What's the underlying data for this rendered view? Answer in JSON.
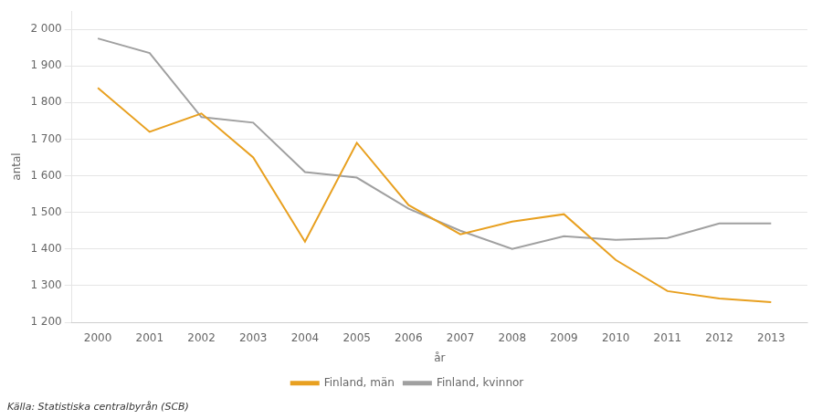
{
  "chart_data": {
    "type": "line",
    "xlabel": "år",
    "ylabel": "antal",
    "annotations": [
      "Källa: Statistiska centralbyrån (SCB)"
    ],
    "x": [
      2000,
      2001,
      2002,
      2003,
      2004,
      2005,
      2006,
      2007,
      2008,
      2009,
      2010,
      2011,
      2012,
      2013
    ],
    "series": [
      {
        "name": "Finland, män",
        "color": "#E8A020",
        "values": [
          1840,
          1720,
          1770,
          1650,
          1420,
          1690,
          1520,
          1440,
          1475,
          1495,
          1370,
          1285,
          1265,
          1255
        ]
      },
      {
        "name": "Finland, kvinnor",
        "color": "#A0A0A0",
        "values": [
          1975,
          1935,
          1760,
          1745,
          1610,
          1595,
          1510,
          1450,
          1400,
          1435,
          1425,
          1430,
          1470,
          1470
        ]
      }
    ],
    "xlim": [
      1999.5,
      2013.7
    ],
    "xticks": [
      2000,
      2001,
      2002,
      2003,
      2004,
      2005,
      2006,
      2007,
      2008,
      2009,
      2010,
      2011,
      2012,
      2013
    ],
    "ylim": [
      1200,
      2050
    ],
    "yticks": [
      {
        "value": 1200,
        "label": "1 200"
      },
      {
        "value": 1300,
        "label": "1 300"
      },
      {
        "value": 1400,
        "label": "1 400"
      },
      {
        "value": 1500,
        "label": "1 500"
      },
      {
        "value": 1600,
        "label": "1 600"
      },
      {
        "value": 1700,
        "label": "1 700"
      },
      {
        "value": 1800,
        "label": "1 800"
      },
      {
        "value": 1900,
        "label": "1 900"
      },
      {
        "value": 2000,
        "label": "2 000"
      }
    ],
    "grid": true,
    "legend": "bottom"
  }
}
